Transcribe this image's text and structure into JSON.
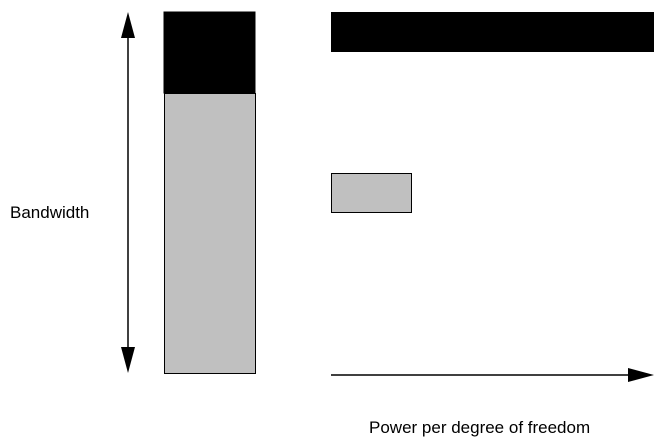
{
  "labels": {
    "bandwidth": "Bandwidth",
    "power_per_dof": "Power per degree of freedom"
  },
  "colors": {
    "dark_segment": "#000000",
    "light_segment": "#c0c0c0",
    "stroke": "#000000",
    "background": "#ffffff"
  }
}
